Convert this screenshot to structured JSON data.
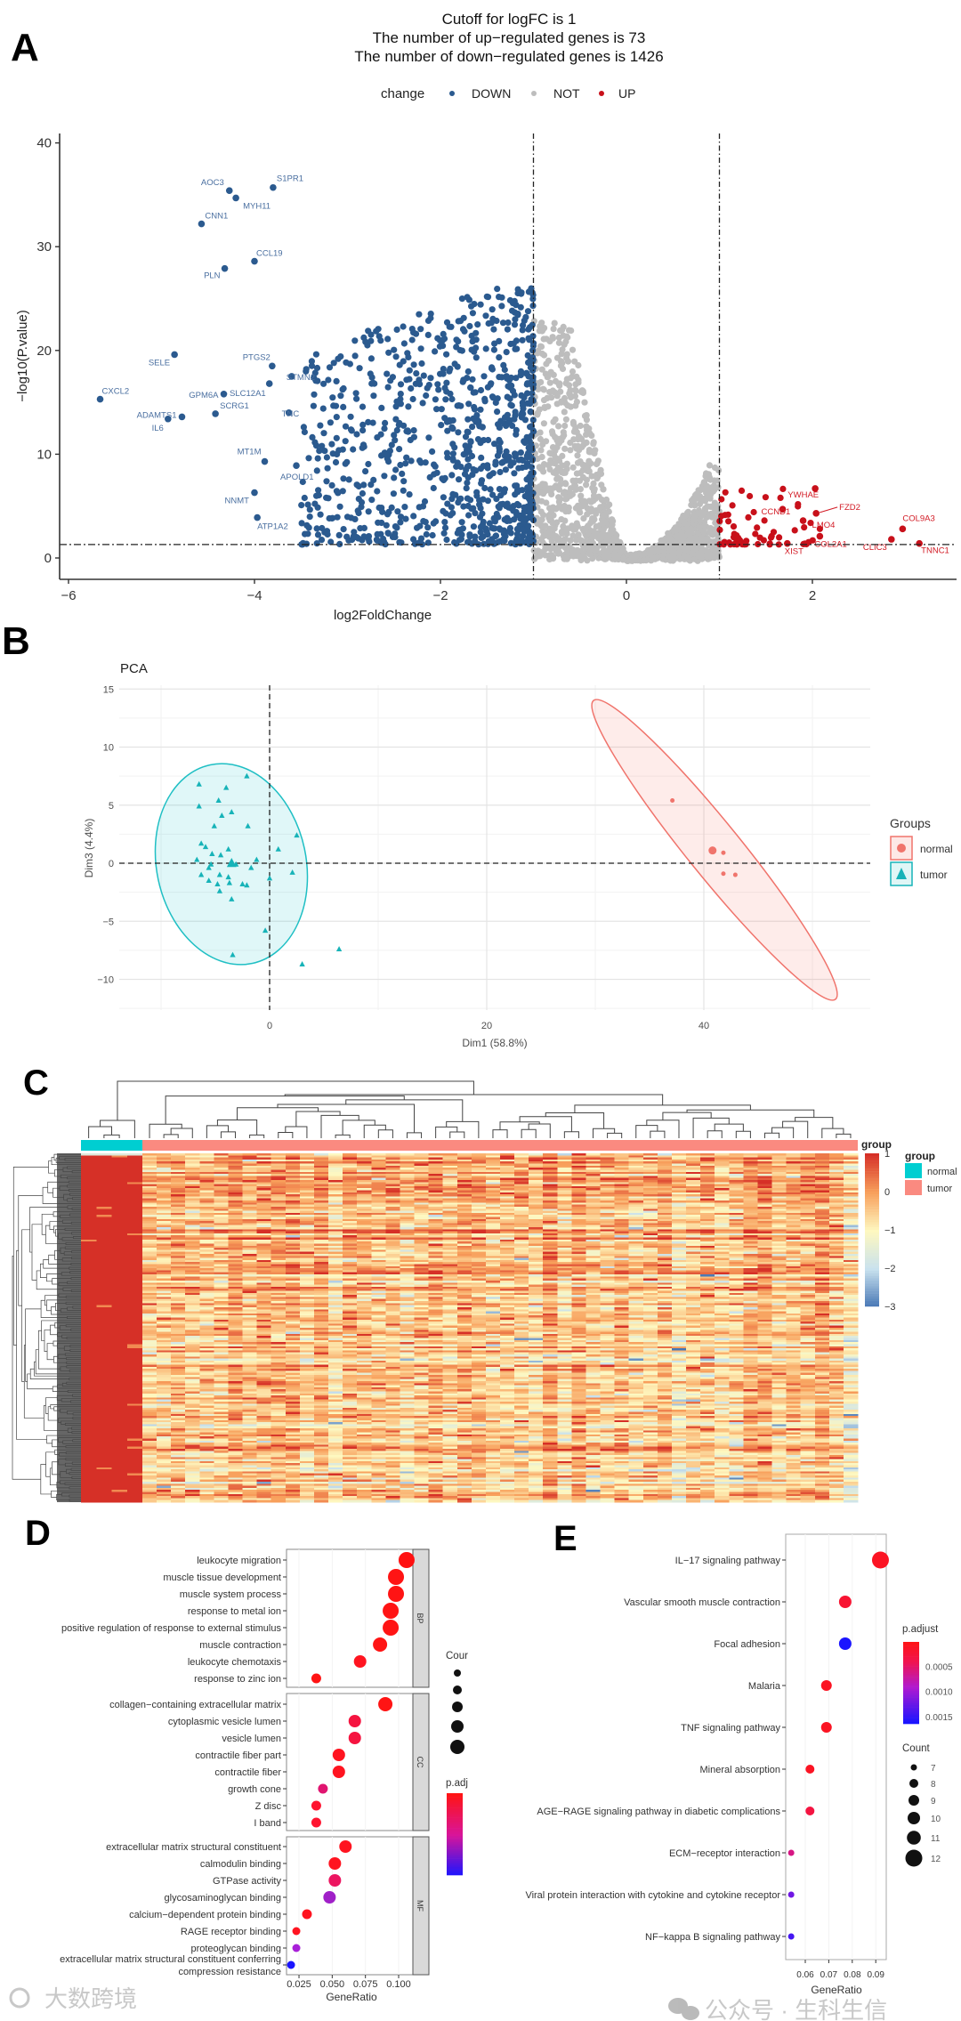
{
  "watermarks": {
    "left": "大数跨境",
    "right": "公众号 · 生科生信"
  },
  "panel_letters": [
    "A",
    "B",
    "C",
    "D",
    "E"
  ],
  "chart_data": [
    {
      "panel": "A",
      "type": "scatter",
      "title_lines": [
        "Cutoff for logFC is 1",
        "The number of up−regulated genes is 73",
        "The number of down−regulated genes is 1426"
      ],
      "legend_title": "change",
      "legend": [
        {
          "label": "DOWN",
          "color": "#2b5a8f"
        },
        {
          "label": "NOT",
          "color": "#bdbdbd"
        },
        {
          "label": "UP",
          "color": "#c8101a"
        }
      ],
      "xlabel": "log2FoldChange",
      "ylabel": "−log10(P.value)",
      "xlim": [
        -6.1,
        3.6
      ],
      "ylim": [
        -2,
        42
      ],
      "xticks": [
        {
          "value": -6,
          "label": "−6"
        },
        {
          "value": -4,
          "label": "−4"
        },
        {
          "value": -2,
          "label": "−2"
        },
        {
          "value": 0,
          "label": "0"
        },
        {
          "value": 2,
          "label": "2"
        }
      ],
      "yticks": [
        {
          "value": 0,
          "label": "0"
        },
        {
          "value": 10,
          "label": "10"
        },
        {
          "value": 20,
          "label": "20"
        },
        {
          "value": 30,
          "label": "30"
        },
        {
          "value": 40,
          "label": "40"
        }
      ],
      "logfc_cutoff_lines": [
        -1,
        1
      ],
      "pvalue_cutoff_line": 1.3,
      "counts": {
        "up": 73,
        "down": 1426
      },
      "labeled_genes": [
        {
          "gene": "AOC3",
          "x": -4.27,
          "y": 35.4,
          "group": "DOWN"
        },
        {
          "gene": "MYH11",
          "x": -4.2,
          "y": 34.7,
          "group": "DOWN"
        },
        {
          "gene": "S1PR1",
          "x": -3.8,
          "y": 35.7,
          "group": "DOWN"
        },
        {
          "gene": "CNN1",
          "x": -4.57,
          "y": 32.2,
          "group": "DOWN"
        },
        {
          "gene": "CCL19",
          "x": -4.0,
          "y": 28.6,
          "group": "DOWN"
        },
        {
          "gene": "PLN",
          "x": -4.32,
          "y": 27.9,
          "group": "DOWN"
        },
        {
          "gene": "SELE",
          "x": -4.86,
          "y": 19.6,
          "group": "DOWN"
        },
        {
          "gene": "PTGS2",
          "x": -3.81,
          "y": 18.5,
          "group": "DOWN"
        },
        {
          "gene": "STMN2",
          "x": -3.6,
          "y": 17.5,
          "group": "DOWN"
        },
        {
          "gene": "CXCL2",
          "x": -5.66,
          "y": 15.3,
          "group": "DOWN"
        },
        {
          "gene": "GPM6A",
          "x": -4.33,
          "y": 15.8,
          "group": "DOWN"
        },
        {
          "gene": "SLC12A1",
          "x": -3.84,
          "y": 16.8,
          "group": "DOWN"
        },
        {
          "gene": "ADAMTS1",
          "x": -4.78,
          "y": 13.6,
          "group": "DOWN"
        },
        {
          "gene": "SCRG1",
          "x": -4.42,
          "y": 13.9,
          "group": "DOWN"
        },
        {
          "gene": "IL6",
          "x": -4.93,
          "y": 13.4,
          "group": "DOWN"
        },
        {
          "gene": "TNC",
          "x": -3.63,
          "y": 14.0,
          "group": "DOWN"
        },
        {
          "gene": "MT1M",
          "x": -3.89,
          "y": 9.3,
          "group": "DOWN"
        },
        {
          "gene": "APOLD1",
          "x": -3.55,
          "y": 8.9,
          "group": "DOWN"
        },
        {
          "gene": "NNMT",
          "x": -4.0,
          "y": 6.3,
          "group": "DOWN"
        },
        {
          "gene": "ATP1A2",
          "x": -3.97,
          "y": 3.9,
          "group": "DOWN"
        },
        {
          "gene": "YWHAE",
          "x": 2.03,
          "y": 6.7,
          "group": "UP"
        },
        {
          "gene": "FZD2",
          "x": 2.04,
          "y": 4.3,
          "group": "UP"
        },
        {
          "gene": "CCND1",
          "x": 1.68,
          "y": 4.7,
          "group": "UP"
        },
        {
          "gene": "LMO4",
          "x": 1.9,
          "y": 3.6,
          "group": "UP"
        },
        {
          "gene": "COL2A1",
          "x": 2.08,
          "y": 2.1,
          "group": "UP"
        },
        {
          "gene": "COL9A3",
          "x": 2.97,
          "y": 2.8,
          "group": "UP"
        },
        {
          "gene": "CLIC3",
          "x": 2.85,
          "y": 1.8,
          "group": "UP"
        },
        {
          "gene": "TNNC1",
          "x": 3.15,
          "y": 1.4,
          "group": "UP"
        },
        {
          "gene": "XIST",
          "x": 1.73,
          "y": 1.4,
          "group": "UP"
        }
      ]
    },
    {
      "panel": "B",
      "type": "scatter",
      "title": "PCA",
      "xlabel": "Dim1 (58.8%)",
      "ylabel": "Dim3 (4.4%)",
      "xlim": [
        -13.9,
        55.3
      ],
      "ylim": [
        -12.5,
        15.2
      ],
      "xticks": [
        {
          "value": 0,
          "label": "0"
        },
        {
          "value": 20,
          "label": "20"
        },
        {
          "value": 40,
          "label": "40"
        }
      ],
      "yticks": [
        {
          "value": 15,
          "label": "15"
        },
        {
          "value": 10,
          "label": "10"
        },
        {
          "value": 5,
          "label": "5"
        },
        {
          "value": 0,
          "label": "0"
        },
        {
          "value": -5,
          "label": "−5"
        },
        {
          "value": -10,
          "label": "−10"
        }
      ],
      "legend_title": "Groups",
      "groups": [
        {
          "name": "normal",
          "color": "#f0746c",
          "shape": "circle",
          "centroid": [
            40.8,
            1.1
          ],
          "points": [
            [
              37.1,
              5.4
            ],
            [
              41.8,
              0.9
            ],
            [
              41.8,
              -0.9
            ],
            [
              42.9,
              -1.0
            ]
          ]
        },
        {
          "name": "tumor",
          "color": "#17b3b8",
          "shape": "triangle",
          "centroid": [
            -3.5,
            0.0
          ],
          "points": [
            [
              -6.5,
              6.8
            ],
            [
              -4.0,
              6.5
            ],
            [
              -2.1,
              7.5
            ],
            [
              -6.5,
              4.9
            ],
            [
              -4.7,
              5.4
            ],
            [
              -3.5,
              4.4
            ],
            [
              -4.4,
              4.1
            ],
            [
              -5.1,
              3.2
            ],
            [
              -2.0,
              3.2
            ],
            [
              2.5,
              2.4
            ],
            [
              -6.3,
              1.7
            ],
            [
              -5.9,
              1.4
            ],
            [
              -3.8,
              1.2
            ],
            [
              -5.3,
              0.8
            ],
            [
              -4.5,
              0.7
            ],
            [
              0.8,
              1.2
            ],
            [
              -6.7,
              0.3
            ],
            [
              -5.4,
              -0.1
            ],
            [
              -5.6,
              -0.4
            ],
            [
              -3.4,
              -0.1
            ],
            [
              -3.1,
              -0.1
            ],
            [
              -1.7,
              -0.4
            ],
            [
              -1.2,
              0.3
            ],
            [
              0.0,
              -1.3
            ],
            [
              2.1,
              -0.8
            ],
            [
              -6.3,
              -1.0
            ],
            [
              -5.6,
              -1.5
            ],
            [
              -4.6,
              -1.0
            ],
            [
              -4.8,
              -1.8
            ],
            [
              -3.8,
              -1.2
            ],
            [
              -3.7,
              -1.7
            ],
            [
              -2.5,
              -1.8
            ],
            [
              -2.1,
              -1.9
            ],
            [
              -4.6,
              -2.4
            ],
            [
              -3.5,
              -3.1
            ],
            [
              -0.4,
              -5.8
            ],
            [
              6.4,
              -7.4
            ],
            [
              -3.4,
              -7.9
            ],
            [
              3.0,
              -8.7
            ]
          ]
        }
      ]
    },
    {
      "panel": "C",
      "type": "heatmap",
      "annotation_title": "group",
      "colorbar_title": "group",
      "colorbar_ticks": [
        {
          "value": 1,
          "label": "1"
        },
        {
          "value": 0,
          "label": "0"
        },
        {
          "value": -1,
          "label": "−1"
        },
        {
          "value": -2,
          "label": "−2"
        },
        {
          "value": -3,
          "label": "−3"
        }
      ],
      "value_range": [
        -3,
        1
      ],
      "colorscale": [
        [
          "-3",
          "#4575b4"
        ],
        [
          "-2",
          "#c8e1ee"
        ],
        [
          "-1",
          "#fef8c0"
        ],
        [
          "0",
          "#f8a05c"
        ],
        [
          "1",
          "#d63027"
        ]
      ],
      "groups": [
        {
          "name": "normal",
          "color": "#00ced1",
          "n_columns": 4
        },
        {
          "name": "tumor",
          "color": "#fa8a80",
          "n_columns": 50
        }
      ],
      "n_rows": 170,
      "row_dendrogram": true,
      "column_dendrogram": true
    },
    {
      "panel": "D",
      "type": "scatter",
      "xlabel": "GeneRatio",
      "xticks": [
        {
          "value": 0.025,
          "label": "0.025"
        },
        {
          "value": 0.05,
          "label": "0.050"
        },
        {
          "value": 0.075,
          "label": "0.075"
        },
        {
          "value": 0.1,
          "label": "0.100"
        }
      ],
      "size_legend_title": "Cour",
      "color_legend_title": "p.adj",
      "facets": [
        {
          "name": "BP",
          "terms": [
            {
              "label": "leukocyte migration",
              "gene_ratio": 0.106,
              "size_level": 5,
              "color": "#ff1010"
            },
            {
              "label": "muscle tissue development",
              "gene_ratio": 0.098,
              "size_level": 5,
              "color": "#ff1414"
            },
            {
              "label": "muscle system process",
              "gene_ratio": 0.098,
              "size_level": 5,
              "color": "#ff1414"
            },
            {
              "label": "response to metal ion",
              "gene_ratio": 0.094,
              "size_level": 5,
              "color": "#ff1414"
            },
            {
              "label": "positive regulation of response to external stimulus",
              "gene_ratio": 0.094,
              "size_level": 5,
              "color": "#ff1414"
            },
            {
              "label": "muscle contraction",
              "gene_ratio": 0.086,
              "size_level": 4,
              "color": "#ff1414"
            },
            {
              "label": "leukocyte chemotaxis",
              "gene_ratio": 0.071,
              "size_level": 3,
              "color": "#ff1420"
            },
            {
              "label": "response to zinc ion",
              "gene_ratio": 0.038,
              "size_level": 2,
              "color": "#ff1414"
            }
          ]
        },
        {
          "name": "CC",
          "terms": [
            {
              "label": "collagen−containing extracellular matrix",
              "gene_ratio": 0.09,
              "size_level": 4,
              "color": "#ff1414"
            },
            {
              "label": "cytoplasmic vesicle lumen",
              "gene_ratio": 0.067,
              "size_level": 3,
              "color": "#f51440"
            },
            {
              "label": "vesicle lumen",
              "gene_ratio": 0.067,
              "size_level": 3,
              "color": "#f51440"
            },
            {
              "label": "contractile fiber part",
              "gene_ratio": 0.055,
              "size_level": 3,
              "color": "#ff1420"
            },
            {
              "label": "contractile fiber",
              "gene_ratio": 0.055,
              "size_level": 3,
              "color": "#ff1420"
            },
            {
              "label": "growth cone",
              "gene_ratio": 0.043,
              "size_level": 2,
              "color": "#e01570"
            },
            {
              "label": "Z disc",
              "gene_ratio": 0.038,
              "size_level": 2,
              "color": "#ff1430"
            },
            {
              "label": "I band",
              "gene_ratio": 0.038,
              "size_level": 2,
              "color": "#ff1430"
            }
          ]
        },
        {
          "name": "MF",
          "terms": [
            {
              "label": "extracellular matrix structural constituent",
              "gene_ratio": 0.06,
              "size_level": 3,
              "color": "#ff1420"
            },
            {
              "label": "calmodulin binding",
              "gene_ratio": 0.052,
              "size_level": 3,
              "color": "#ff1420"
            },
            {
              "label": "GTPase activity",
              "gene_ratio": 0.052,
              "size_level": 3,
              "color": "#ec1560"
            },
            {
              "label": "glycosaminoglycan binding",
              "gene_ratio": 0.048,
              "size_level": 3,
              "color": "#a020c8"
            },
            {
              "label": "calcium−dependent protein binding",
              "gene_ratio": 0.031,
              "size_level": 2,
              "color": "#ff1420"
            },
            {
              "label": "RAGE receptor binding",
              "gene_ratio": 0.023,
              "size_level": 1,
              "color": "#ff1420"
            },
            {
              "label": "proteoglycan binding",
              "gene_ratio": 0.023,
              "size_level": 1,
              "color": "#a820d8"
            },
            {
              "label": "extracellular matrix structural constituent conferring",
              "label2": "compression resistance",
              "gene_ratio": 0.019,
              "size_level": 1,
              "color": "#1a14ff"
            }
          ]
        }
      ]
    },
    {
      "panel": "E",
      "type": "scatter",
      "xlabel": "GeneRatio",
      "xticks": [
        {
          "value": 0.06,
          "label": "0.06"
        },
        {
          "value": 0.07,
          "label": "0.07"
        },
        {
          "value": 0.08,
          "label": "0.08"
        },
        {
          "value": 0.09,
          "label": "0.09"
        }
      ],
      "color_legend_title": "p.adjust",
      "color_ticks": [
        {
          "value": 0.0005,
          "label": "0.0005"
        },
        {
          "value": 0.001,
          "label": "0.0010"
        },
        {
          "value": 0.0015,
          "label": "0.0015"
        }
      ],
      "size_legend_title": "Count",
      "size_ticks": [
        {
          "value": 7,
          "label": "7"
        },
        {
          "value": 8,
          "label": "8"
        },
        {
          "value": 9,
          "label": "9"
        },
        {
          "value": 10,
          "label": "10"
        },
        {
          "value": 11,
          "label": "11"
        },
        {
          "value": 12,
          "label": "12"
        }
      ],
      "terms": [
        {
          "label": "IL−17 signaling pathway",
          "gene_ratio": 0.092,
          "count": 12,
          "p_adjust": 0.0001
        },
        {
          "label": "Vascular smooth muscle contraction",
          "gene_ratio": 0.077,
          "count": 10,
          "p_adjust": 0.0002
        },
        {
          "label": "Focal adhesion",
          "gene_ratio": 0.077,
          "count": 10,
          "p_adjust": 0.0016
        },
        {
          "label": "Malaria",
          "gene_ratio": 0.069,
          "count": 9,
          "p_adjust": 0.0001
        },
        {
          "label": "TNF signaling pathway",
          "gene_ratio": 0.069,
          "count": 9,
          "p_adjust": 0.0001
        },
        {
          "label": "Mineral absorption",
          "gene_ratio": 0.062,
          "count": 8,
          "p_adjust": 0.0001
        },
        {
          "label": "AGE−RAGE signaling pathway in diabetic complications",
          "gene_ratio": 0.062,
          "count": 8,
          "p_adjust": 0.0003
        },
        {
          "label": "ECM−receptor interaction",
          "gene_ratio": 0.054,
          "count": 7,
          "p_adjust": 0.0006
        },
        {
          "label": "Viral protein interaction with cytokine and cytokine receptor",
          "gene_ratio": 0.054,
          "count": 7,
          "p_adjust": 0.0012
        },
        {
          "label": "NF−kappa B signaling pathway",
          "gene_ratio": 0.054,
          "count": 7,
          "p_adjust": 0.0014
        }
      ]
    }
  ]
}
